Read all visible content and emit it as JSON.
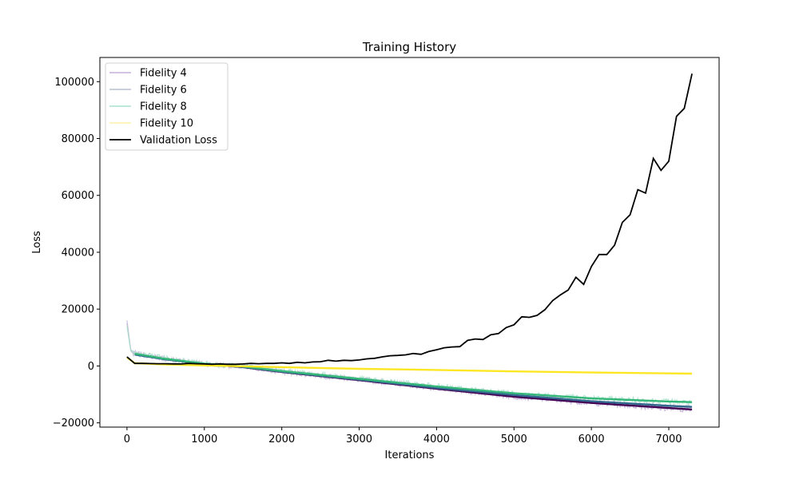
{
  "chart_data": {
    "type": "line",
    "title": "Training History",
    "xlabel": "Iterations",
    "ylabel": "Loss",
    "xlim": [
      -350,
      7650
    ],
    "ylim": [
      -21500,
      108500
    ],
    "xticks": [
      0,
      1000,
      2000,
      3000,
      4000,
      5000,
      6000,
      7000
    ],
    "xtick_labels": [
      "0",
      "1000",
      "2000",
      "3000",
      "4000",
      "5000",
      "6000",
      "7000"
    ],
    "yticks": [
      -20000,
      0,
      20000,
      40000,
      60000,
      80000,
      100000
    ],
    "ytick_labels": [
      "−20000",
      "0",
      "20000",
      "40000",
      "60000",
      "80000",
      "100000"
    ],
    "grid": false,
    "legend_position": "top-left",
    "series": [
      {
        "name": "Fidelity 4",
        "raw_color": "#c4b0d8",
        "smooth_color": "#440154",
        "raw_points": [
          [
            0,
            16000
          ],
          [
            50,
            5500
          ],
          [
            100,
            4500
          ],
          [
            500,
            2600
          ],
          [
            1000,
            800
          ],
          [
            1500,
            -300
          ],
          [
            2000,
            -2000
          ],
          [
            3000,
            -4800
          ],
          [
            4000,
            -7800
          ],
          [
            5000,
            -10800
          ],
          [
            6000,
            -13000
          ],
          [
            7000,
            -15000
          ],
          [
            7300,
            -15500
          ]
        ],
        "smooth_points": [
          [
            100,
            4200
          ],
          [
            500,
            2400
          ],
          [
            1000,
            700
          ],
          [
            1500,
            -400
          ],
          [
            2000,
            -2100
          ],
          [
            3000,
            -5000
          ],
          [
            4000,
            -8000
          ],
          [
            5000,
            -10800
          ],
          [
            6000,
            -13000
          ],
          [
            7000,
            -14800
          ],
          [
            7300,
            -15300
          ]
        ]
      },
      {
        "name": "Fidelity 6",
        "raw_color": "#b9c0cf",
        "smooth_color": "#31688e",
        "raw_points": [
          [
            0,
            15000
          ],
          [
            50,
            5000
          ],
          [
            100,
            4300
          ],
          [
            500,
            2500
          ],
          [
            1000,
            800
          ],
          [
            1500,
            -200
          ],
          [
            2000,
            -1900
          ],
          [
            3000,
            -4700
          ],
          [
            4000,
            -7600
          ],
          [
            5000,
            -10300
          ],
          [
            6000,
            -12600
          ],
          [
            7000,
            -14200
          ],
          [
            7300,
            -14600
          ]
        ],
        "smooth_points": [
          [
            100,
            4000
          ],
          [
            500,
            2300
          ],
          [
            1000,
            700
          ],
          [
            1500,
            -300
          ],
          [
            2000,
            -2000
          ],
          [
            3000,
            -4800
          ],
          [
            4000,
            -7700
          ],
          [
            5000,
            -10200
          ],
          [
            6000,
            -12400
          ],
          [
            7000,
            -14000
          ],
          [
            7300,
            -14400
          ]
        ]
      },
      {
        "name": "Fidelity 8",
        "raw_color": "#a8e0cb",
        "smooth_color": "#35b779",
        "raw_points": [
          [
            0,
            14000
          ],
          [
            50,
            5200
          ],
          [
            100,
            4600
          ],
          [
            500,
            2700
          ],
          [
            1000,
            900
          ],
          [
            1500,
            -100
          ],
          [
            2000,
            -1700
          ],
          [
            3000,
            -4400
          ],
          [
            4000,
            -7100
          ],
          [
            5000,
            -9600
          ],
          [
            6000,
            -11300
          ],
          [
            7000,
            -12400
          ],
          [
            7300,
            -12800
          ]
        ],
        "smooth_points": [
          [
            100,
            4300
          ],
          [
            500,
            2500
          ],
          [
            1000,
            800
          ],
          [
            1500,
            -200
          ],
          [
            2000,
            -1800
          ],
          [
            3000,
            -4500
          ],
          [
            4000,
            -7200
          ],
          [
            5000,
            -9600
          ],
          [
            6000,
            -11400
          ],
          [
            7000,
            -12500
          ],
          [
            7300,
            -12700
          ]
        ]
      },
      {
        "name": "Fidelity 10",
        "raw_color": "#fdf2a8",
        "smooth_color": "#fde725",
        "raw_points": [
          [
            0,
            3000
          ],
          [
            100,
            1000
          ],
          [
            500,
            500
          ],
          [
            1000,
            200
          ],
          [
            2000,
            -400
          ],
          [
            3000,
            -1000
          ],
          [
            4000,
            -1400
          ],
          [
            5000,
            -1900
          ],
          [
            6000,
            -2300
          ],
          [
            7000,
            -2600
          ],
          [
            7300,
            -2700
          ]
        ],
        "smooth_points": [
          [
            0,
            3000
          ],
          [
            100,
            1000
          ],
          [
            500,
            500
          ],
          [
            1000,
            200
          ],
          [
            2000,
            -400
          ],
          [
            3000,
            -1000
          ],
          [
            4000,
            -1400
          ],
          [
            5000,
            -1900
          ],
          [
            6000,
            -2300
          ],
          [
            7000,
            -2600
          ],
          [
            7300,
            -2700
          ]
        ]
      },
      {
        "name": "Validation Loss",
        "color": "#000000",
        "points": [
          [
            0,
            3200
          ],
          [
            100,
            900
          ],
          [
            200,
            900
          ],
          [
            300,
            850
          ],
          [
            400,
            800
          ],
          [
            500,
            800
          ],
          [
            600,
            750
          ],
          [
            700,
            700
          ],
          [
            800,
            900
          ],
          [
            900,
            800
          ],
          [
            1000,
            700
          ],
          [
            1100,
            600
          ],
          [
            1200,
            700
          ],
          [
            1300,
            600
          ],
          [
            1400,
            600
          ],
          [
            1500,
            700
          ],
          [
            1600,
            900
          ],
          [
            1700,
            800
          ],
          [
            1800,
            900
          ],
          [
            1900,
            900
          ],
          [
            2000,
            1100
          ],
          [
            2100,
            900
          ],
          [
            2200,
            1300
          ],
          [
            2300,
            1100
          ],
          [
            2400,
            1400
          ],
          [
            2500,
            1500
          ],
          [
            2600,
            2000
          ],
          [
            2700,
            1700
          ],
          [
            2800,
            2000
          ],
          [
            2900,
            1900
          ],
          [
            3000,
            2100
          ],
          [
            3100,
            2500
          ],
          [
            3200,
            2700
          ],
          [
            3300,
            3200
          ],
          [
            3400,
            3600
          ],
          [
            3500,
            3700
          ],
          [
            3600,
            3900
          ],
          [
            3700,
            4400
          ],
          [
            3800,
            4100
          ],
          [
            3900,
            5100
          ],
          [
            4000,
            5700
          ],
          [
            4100,
            6400
          ],
          [
            4200,
            6700
          ],
          [
            4300,
            6800
          ],
          [
            4400,
            9000
          ],
          [
            4500,
            9500
          ],
          [
            4600,
            9300
          ],
          [
            4700,
            11000
          ],
          [
            4800,
            11400
          ],
          [
            4900,
            13500
          ],
          [
            5000,
            14500
          ],
          [
            5100,
            17300
          ],
          [
            5200,
            17100
          ],
          [
            5300,
            17800
          ],
          [
            5400,
            19800
          ],
          [
            5500,
            23000
          ],
          [
            5600,
            25000
          ],
          [
            5700,
            26700
          ],
          [
            5800,
            31200
          ],
          [
            5900,
            28700
          ],
          [
            6000,
            35000
          ],
          [
            6100,
            39200
          ],
          [
            6200,
            39200
          ],
          [
            6300,
            42500
          ],
          [
            6400,
            50500
          ],
          [
            6500,
            53200
          ],
          [
            6600,
            62000
          ],
          [
            6700,
            60800
          ],
          [
            6800,
            73000
          ],
          [
            6900,
            68800
          ],
          [
            7000,
            72000
          ],
          [
            7100,
            87800
          ],
          [
            7200,
            90600
          ],
          [
            7300,
            102800
          ]
        ]
      }
    ]
  }
}
